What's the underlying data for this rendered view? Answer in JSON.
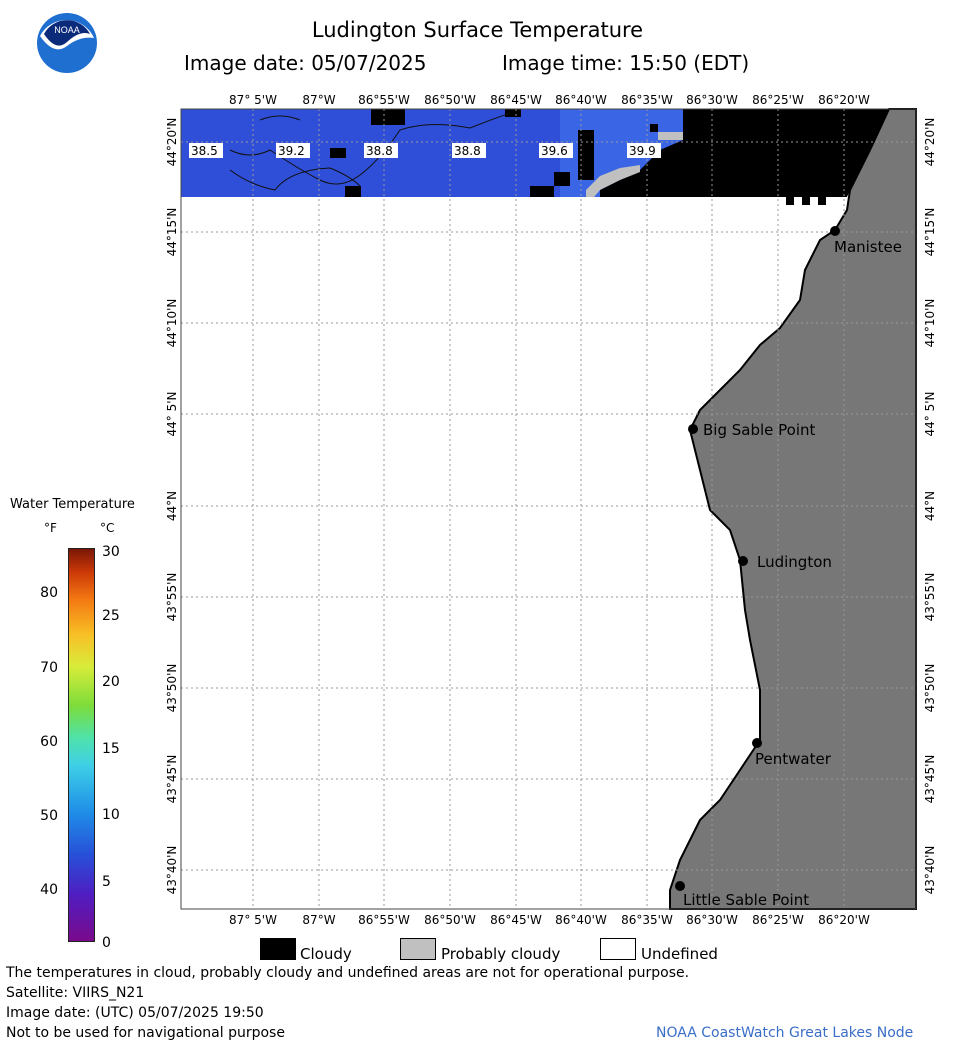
{
  "header": {
    "title": "Ludington Surface Temperature",
    "image_date": "Image date: 05/07/2025",
    "image_time": "Image time: 15:50 (EDT)"
  },
  "logo": {
    "text": "NOAA",
    "icon": "noaa-logo-icon"
  },
  "map": {
    "lon_labels": [
      "87° 5'W",
      "87°W",
      "86°55'W",
      "86°50'W",
      "86°45'W",
      "86°40'W",
      "86°35'W",
      "86°30'W",
      "86°25'W",
      "86°20'W"
    ],
    "lat_labels": [
      "44°20'N",
      "44°15'N",
      "44°10'N",
      "44° 5'N",
      "44°N",
      "43°55'N",
      "43°50'N",
      "43°45'N",
      "43°40'N"
    ],
    "temperature_labels": [
      "38.5",
      "39.2",
      "38.8",
      "38.8",
      "39.6",
      "39.9"
    ],
    "places": [
      "Manistee",
      "Big Sable Point",
      "Ludington",
      "Pentwater",
      "Little Sable Point"
    ],
    "colors": {
      "water": "#2f4fd8",
      "water_warm": "#3a66e6",
      "cloud": "#000000",
      "probably_cloudy": "#c0c0c0",
      "land": "#777777"
    }
  },
  "legend": {
    "title": "Water Temperature",
    "unit_f": "°F",
    "unit_c": "°C",
    "f_ticks": [
      "80",
      "70",
      "60",
      "50",
      "40"
    ],
    "c_ticks": [
      "30",
      "25",
      "20",
      "15",
      "10",
      "5",
      "0"
    ],
    "cloudy": "Cloudy",
    "probably_cloudy": "Probably cloudy",
    "undefined": "Undefined"
  },
  "footer": {
    "disclaimer": "The temperatures in cloud, probably cloudy and undefined areas are not for operational purpose.",
    "satellite": "Satellite: VIIRS_N21",
    "utc_date": "Image date: (UTC) 05/07/2025  19:50",
    "navigation": "Not to be used for navigational purpose",
    "credit": "NOAA CoastWatch Great Lakes Node"
  }
}
